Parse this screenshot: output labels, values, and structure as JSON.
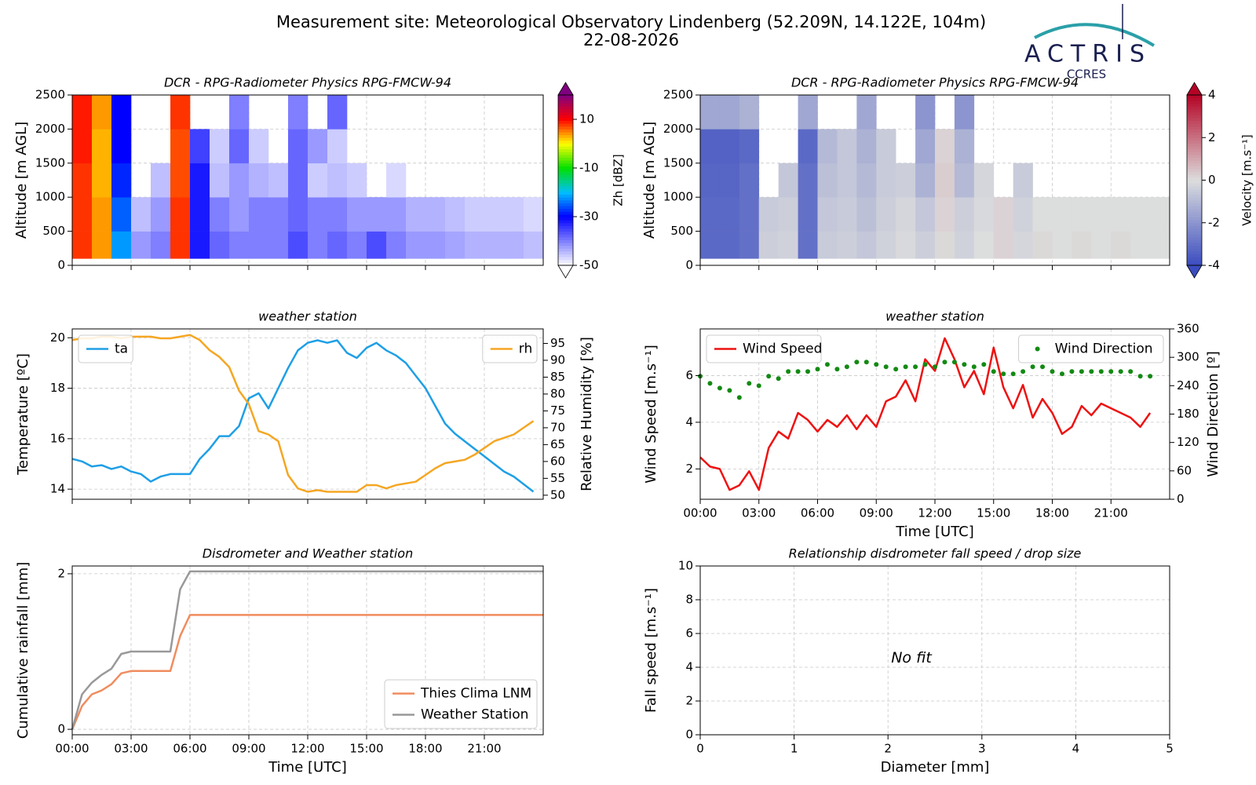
{
  "header": {
    "title": "Measurement site: Meteorological Observatory Lindenberg (52.209N, 14.122E, 104m)",
    "date": "22-08-2026",
    "logo": "ACTRIS",
    "logo_sub": "CCRES"
  },
  "chart_data": [
    {
      "type": "heatmap",
      "title": "DCR - RPG-Radiometer Physics RPG-FMCW-94",
      "ylabel": "Altitude [m AGL]",
      "zlabel": "Zh [dBZ]",
      "xlim": [
        0,
        24
      ],
      "xticks": [
        0,
        3,
        6,
        9,
        12,
        15,
        18,
        21
      ],
      "xtick_labels": false,
      "ylim": [
        0,
        2500
      ],
      "yticks": [
        0,
        500,
        1000,
        1500,
        2000,
        2500
      ],
      "grid": true,
      "zlim": [
        -50,
        20
      ],
      "zticks": [
        -50,
        -30,
        -10,
        10
      ],
      "colors": [
        "#ffffff",
        "#7f7fff",
        "#0000ff",
        "#00bfff",
        "#00e000",
        "#ffff00",
        "#ff0000",
        "#800080"
      ],
      "xbins": [
        0,
        1,
        2,
        3,
        4,
        5,
        6,
        7,
        8,
        9,
        10,
        11,
        12,
        13,
        14,
        15,
        16,
        17,
        18,
        19,
        20,
        21,
        22,
        23,
        24
      ],
      "ybins": [
        100,
        500,
        1000,
        1500,
        2000,
        2500
      ],
      "values": [
        [
          8,
          4,
          -22,
          -42,
          -40,
          8,
          -32,
          -38,
          -40,
          -40,
          -40,
          -36,
          -40,
          -38,
          -40,
          -36,
          -40,
          -42,
          -42,
          -43,
          -44,
          -44,
          -44,
          -45
        ],
        [
          8,
          4,
          -25,
          -45,
          -42,
          8,
          -32,
          -40,
          -42,
          -40,
          -40,
          -38,
          -40,
          -40,
          -42,
          -42,
          -42,
          -44,
          -44,
          -45,
          -46,
          -46,
          -46,
          -47
        ],
        [
          8,
          3,
          -28,
          null,
          -45,
          7,
          -32,
          -45,
          -42,
          -44,
          -45,
          -38,
          -46,
          -45,
          -46,
          null,
          -47,
          null,
          null,
          null,
          null,
          null,
          null,
          null
        ],
        [
          9,
          3,
          -30,
          null,
          null,
          7,
          -35,
          -46,
          -38,
          -46,
          null,
          -38,
          -42,
          -46,
          null,
          null,
          null,
          null,
          null,
          null,
          null,
          null,
          null,
          null
        ],
        [
          9,
          4,
          -30,
          null,
          null,
          8,
          null,
          null,
          -40,
          null,
          null,
          -40,
          null,
          -38,
          null,
          null,
          null,
          null,
          null,
          null,
          null,
          null,
          null,
          null
        ]
      ]
    },
    {
      "type": "heatmap",
      "title": "DCR - RPG-Radiometer Physics RPG-FMCW-94",
      "ylabel": "Altitude [m AGL]",
      "zlabel": "Velocity [m.s⁻¹]",
      "xlim": [
        0,
        24
      ],
      "xticks": [
        0,
        3,
        6,
        9,
        12,
        15,
        18,
        21
      ],
      "xtick_labels": false,
      "ylim": [
        0,
        2500
      ],
      "yticks": [
        0,
        500,
        1000,
        1500,
        2000,
        2500
      ],
      "grid": true,
      "zlim": [
        -4,
        4
      ],
      "zticks": [
        -4,
        -2,
        0,
        2,
        4
      ],
      "colors": [
        "#3b4cc0",
        "#dcdddd",
        "#b40426"
      ],
      "xbins": [
        0,
        1,
        2,
        3,
        4,
        5,
        6,
        7,
        8,
        9,
        10,
        11,
        12,
        13,
        14,
        15,
        16,
        17,
        18,
        19,
        20,
        21,
        22,
        23,
        24
      ],
      "ybins": [
        100,
        500,
        1000,
        1500,
        2000,
        2500
      ],
      "values": [
        [
          -3.2,
          -3.2,
          -3,
          -0.4,
          -0.3,
          -3,
          -0.5,
          -0.4,
          -0.6,
          -0.3,
          -0.1,
          -0.4,
          0.1,
          -0.3,
          0,
          0.2,
          -0.2,
          0.1,
          0,
          0.1,
          0,
          0.1,
          0,
          0
        ],
        [
          -3.2,
          -3.2,
          -3,
          -0.5,
          -0.4,
          -3,
          -0.6,
          -0.5,
          -0.8,
          -0.4,
          -0.2,
          -0.6,
          0.2,
          -0.4,
          -0.1,
          0.2,
          -0.3,
          0,
          0,
          0,
          0,
          0,
          0,
          0
        ],
        [
          -3.3,
          -3.3,
          -3,
          null,
          -0.6,
          -3,
          -0.8,
          -0.6,
          -1,
          -0.5,
          -0.4,
          -1.2,
          0.3,
          -1,
          -0.2,
          null,
          -0.5,
          null,
          null,
          null,
          null,
          null,
          null,
          null
        ],
        [
          -3.4,
          -3.4,
          -3.2,
          null,
          null,
          -3.2,
          -1,
          -0.6,
          -1.2,
          -0.5,
          null,
          -1.5,
          0.2,
          -1.2,
          null,
          null,
          null,
          null,
          null,
          null,
          null,
          null,
          null,
          null
        ],
        [
          -1.5,
          -1.5,
          -1.2,
          null,
          null,
          -1.5,
          null,
          null,
          -1.5,
          null,
          null,
          -2,
          null,
          -2,
          null,
          null,
          null,
          null,
          null,
          null,
          null,
          null,
          null,
          null
        ]
      ]
    },
    {
      "type": "line",
      "title": "weather station",
      "ylabel": "Temperature [ºC]",
      "y2label": "Relative Humidity [%]",
      "xlim": [
        0,
        24
      ],
      "xticks": [
        0,
        3,
        6,
        9,
        12,
        15,
        18,
        21
      ],
      "xtick_labels": false,
      "ylim": [
        13.6,
        20.35
      ],
      "yticks": [
        14,
        16,
        18,
        20
      ],
      "y2lim": [
        48.8,
        99.3
      ],
      "y2ticks": [
        50,
        55,
        60,
        65,
        70,
        75,
        80,
        85,
        90,
        95
      ],
      "grid": true,
      "x": [
        0,
        0.5,
        1,
        1.5,
        2,
        2.5,
        3,
        3.5,
        4,
        4.5,
        5,
        5.5,
        6,
        6.5,
        7,
        7.5,
        8,
        8.5,
        9,
        9.5,
        10,
        10.5,
        11,
        11.5,
        12,
        12.5,
        13,
        13.5,
        14,
        14.5,
        15,
        15.5,
        16,
        16.5,
        17,
        17.5,
        18,
        18.5,
        19,
        19.5,
        20,
        20.5,
        21,
        21.5,
        22,
        22.5,
        23,
        23.5
      ],
      "series": [
        {
          "name": "ta",
          "color": "#1e9fe6",
          "legend": "upper left",
          "values": [
            15.2,
            15.1,
            14.9,
            14.95,
            14.8,
            14.9,
            14.7,
            14.6,
            14.3,
            14.5,
            14.6,
            14.6,
            14.6,
            15.2,
            15.6,
            16.1,
            16.1,
            16.5,
            17.6,
            17.8,
            17.2,
            18.0,
            18.8,
            19.5,
            19.8,
            19.9,
            19.8,
            19.9,
            19.4,
            19.2,
            19.6,
            19.8,
            19.5,
            19.3,
            19.0,
            18.5,
            18.0,
            17.3,
            16.6,
            16.2,
            15.9,
            15.6,
            15.3,
            15.0,
            14.7,
            14.5,
            14.2,
            13.9
          ]
        },
        {
          "name": "rh",
          "color": "#f5a623",
          "legend": "upper right",
          "axis": "y2",
          "values": [
            96,
            96.5,
            96.5,
            97,
            97,
            96.5,
            97,
            97,
            97,
            96.5,
            96.5,
            97,
            97.5,
            96,
            93,
            91,
            88,
            81,
            77,
            69,
            68,
            66,
            56,
            52,
            51,
            51.5,
            51,
            51,
            51,
            51,
            53,
            53,
            52,
            53,
            53.5,
            54,
            56,
            58,
            59.5,
            60,
            60.5,
            62,
            64,
            66,
            67,
            68,
            70,
            72
          ]
        }
      ]
    },
    {
      "type": "line",
      "title": "weather station",
      "ylabel": "Wind Speed [m.s⁻¹]",
      "y2label": "Wind Direction [º]",
      "xlabel": "Time [UTC]",
      "xlim": [
        0,
        24
      ],
      "xticks": [
        {
          "value": 0,
          "label": "00:00"
        },
        {
          "value": 3,
          "label": "03:00"
        },
        {
          "value": 6,
          "label": "06:00"
        },
        {
          "value": 9,
          "label": "09:00"
        },
        {
          "value": 12,
          "label": "12:00"
        },
        {
          "value": 15,
          "label": "15:00"
        },
        {
          "value": 18,
          "label": "18:00"
        },
        {
          "value": 21,
          "label": "21:00"
        }
      ],
      "ylim": [
        0.7,
        8.0
      ],
      "yticks": [
        2,
        4,
        6
      ],
      "y2lim": [
        0,
        360
      ],
      "y2ticks": [
        0,
        60,
        120,
        180,
        240,
        300,
        360
      ],
      "grid": true,
      "x": [
        0,
        0.5,
        1,
        1.5,
        2,
        2.5,
        3,
        3.5,
        4,
        4.5,
        5,
        5.5,
        6,
        6.5,
        7,
        7.5,
        8,
        8.5,
        9,
        9.5,
        10,
        10.5,
        11,
        11.5,
        12,
        12.5,
        13,
        13.5,
        14,
        14.5,
        15,
        15.5,
        16,
        16.5,
        17,
        17.5,
        18,
        18.5,
        19,
        19.5,
        20,
        20.5,
        21,
        21.5,
        22,
        22.5,
        23
      ],
      "series": [
        {
          "name": "Wind Speed",
          "color": "#ee1111",
          "legend": "upper left",
          "values": [
            2.5,
            2.1,
            2.0,
            1.1,
            1.3,
            1.9,
            1.1,
            2.9,
            3.6,
            3.3,
            4.4,
            4.1,
            3.6,
            4.1,
            3.8,
            4.3,
            3.7,
            4.3,
            3.8,
            4.9,
            5.1,
            5.8,
            4.9,
            6.7,
            6.2,
            7.6,
            6.7,
            5.5,
            6.2,
            5.2,
            7.2,
            5.5,
            4.6,
            5.6,
            4.2,
            5.0,
            4.4,
            3.5,
            3.8,
            4.7,
            4.3,
            4.8,
            4.6,
            4.4,
            4.2,
            3.8,
            4.4
          ]
        },
        {
          "name": "Wind Direction",
          "color": "#138a13",
          "legend": "upper right",
          "axis": "y2",
          "style": "markers",
          "values": [
            260,
            245,
            235,
            230,
            215,
            245,
            240,
            260,
            255,
            270,
            270,
            270,
            275,
            285,
            275,
            280,
            290,
            290,
            285,
            280,
            275,
            280,
            280,
            285,
            280,
            290,
            290,
            285,
            280,
            285,
            270,
            265,
            265,
            270,
            280,
            280,
            270,
            265,
            270,
            270,
            270,
            270,
            270,
            270,
            270,
            260,
            260
          ]
        }
      ]
    },
    {
      "type": "line",
      "title": "Disdrometer and Weather station",
      "ylabel": "Cumulative rainfall [mm]",
      "xlabel": "Time [UTC]",
      "xlim": [
        0,
        24
      ],
      "xticks": [
        {
          "value": 0,
          "label": "00:00"
        },
        {
          "value": 3,
          "label": "03:00"
        },
        {
          "value": 6,
          "label": "06:00"
        },
        {
          "value": 9,
          "label": "09:00"
        },
        {
          "value": 12,
          "label": "12:00"
        },
        {
          "value": 15,
          "label": "15:00"
        },
        {
          "value": 18,
          "label": "18:00"
        },
        {
          "value": 21,
          "label": "21:00"
        }
      ],
      "ylim": [
        -0.07,
        2.1
      ],
      "yticks": [
        0,
        2
      ],
      "grid": true,
      "legend": "lower right",
      "x": [
        0,
        0.5,
        1,
        1.5,
        2,
        2.5,
        3,
        3.5,
        4,
        4.5,
        5,
        5.5,
        6,
        6.5,
        7,
        7.5,
        8,
        8.5,
        9,
        9.5,
        10,
        10.5,
        11,
        11.5,
        12,
        12.5,
        13,
        13.5,
        14,
        14.5,
        15,
        15.5,
        16,
        16.5,
        17,
        17.5,
        18,
        18.5,
        19,
        19.5,
        20,
        20.5,
        21,
        21.5,
        22,
        22.5,
        23,
        23.5,
        24
      ],
      "series": [
        {
          "name": "Thies Clima LNM",
          "color": "#f08c5e",
          "values": [
            0,
            0.3,
            0.45,
            0.5,
            0.58,
            0.72,
            0.75,
            0.75,
            0.75,
            0.75,
            0.75,
            1.2,
            1.47,
            1.47,
            1.47,
            1.47,
            1.47,
            1.47,
            1.47,
            1.47,
            1.47,
            1.47,
            1.47,
            1.47,
            1.47,
            1.47,
            1.47,
            1.47,
            1.47,
            1.47,
            1.47,
            1.47,
            1.47,
            1.47,
            1.47,
            1.47,
            1.47,
            1.47,
            1.47,
            1.47,
            1.47,
            1.47,
            1.47,
            1.47,
            1.47,
            1.47,
            1.47,
            1.47,
            1.47
          ]
        },
        {
          "name": "Weather Station",
          "color": "#999999",
          "values": [
            0,
            0.45,
            0.6,
            0.7,
            0.78,
            0.97,
            1.0,
            1.0,
            1.0,
            1.0,
            1.0,
            1.8,
            2.03,
            2.03,
            2.03,
            2.03,
            2.03,
            2.03,
            2.03,
            2.03,
            2.03,
            2.03,
            2.03,
            2.03,
            2.03,
            2.03,
            2.03,
            2.03,
            2.03,
            2.03,
            2.03,
            2.03,
            2.03,
            2.03,
            2.03,
            2.03,
            2.03,
            2.03,
            2.03,
            2.03,
            2.03,
            2.03,
            2.03,
            2.03,
            2.03,
            2.03,
            2.03,
            2.03,
            2.03
          ]
        }
      ]
    },
    {
      "type": "scatter",
      "title": "Relationship disdrometer fall speed / drop size",
      "xlabel": "Diameter [mm]",
      "ylabel": "Fall speed [m.s⁻¹]",
      "annotation": "No fit",
      "xlim": [
        0,
        5
      ],
      "xticks": [
        0,
        1,
        2,
        3,
        4,
        5
      ],
      "ylim": [
        0,
        10
      ],
      "yticks": [
        0,
        2,
        4,
        6,
        8,
        10
      ],
      "grid": true
    }
  ]
}
